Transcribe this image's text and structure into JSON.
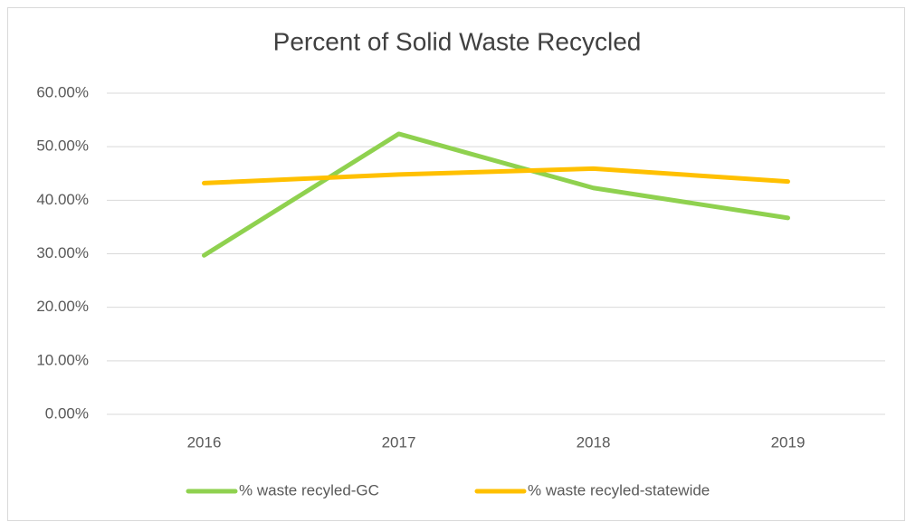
{
  "chart_data": {
    "type": "line",
    "title": "Percent of Solid Waste Recycled",
    "categories": [
      "2016",
      "2017",
      "2018",
      "2019"
    ],
    "series": [
      {
        "name": "% waste recyled-GC",
        "color": "#8fd14f",
        "values": [
          29.7,
          52.4,
          42.3,
          36.7
        ]
      },
      {
        "name": "% waste recyled-statewide",
        "color": "#ffc000",
        "values": [
          43.2,
          44.8,
          45.9,
          43.5
        ]
      }
    ],
    "ylim": [
      0,
      60
    ],
    "yticks": [
      {
        "value": 0,
        "label": "0.00%"
      },
      {
        "value": 10,
        "label": "10.00%"
      },
      {
        "value": 20,
        "label": "20.00%"
      },
      {
        "value": 30,
        "label": "30.00%"
      },
      {
        "value": 40,
        "label": "40.00%"
      },
      {
        "value": 50,
        "label": "50.00%"
      },
      {
        "value": 60,
        "label": "60.00%"
      }
    ],
    "grid": true,
    "legend": "bottom"
  }
}
